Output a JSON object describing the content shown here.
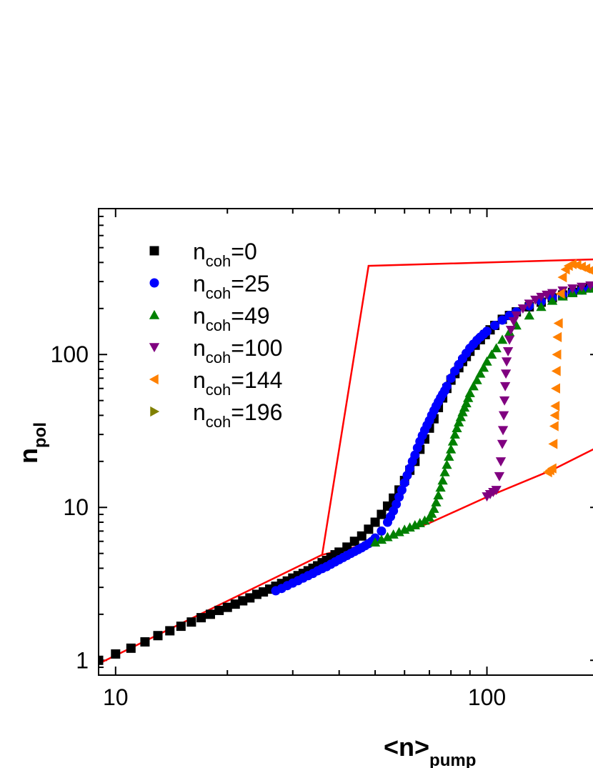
{
  "chart_data": {
    "type": "scatter",
    "title": "",
    "xlabel": {
      "main": "<n>",
      "sub": "pump"
    },
    "ylabel": {
      "main": "n",
      "sub": "pol"
    },
    "xscale": "log",
    "yscale": "log",
    "xlim": [
      9,
      200
    ],
    "ylim": [
      0.8,
      900
    ],
    "x_tick_labels": [
      "10",
      "100"
    ],
    "y_tick_labels": [
      "1",
      "10",
      "100"
    ],
    "grid": false,
    "legend_position": "top-left",
    "series": [
      {
        "name": {
          "main": "n",
          "sub": "coh",
          "rest": "=0"
        },
        "marker": "square",
        "color": "#000000",
        "x": [
          9,
          10,
          11,
          12,
          13,
          14,
          15,
          16,
          17,
          18,
          19,
          20,
          21,
          22,
          23,
          24,
          25,
          26,
          27,
          28,
          29,
          30,
          31,
          32,
          33,
          34,
          35,
          36,
          37,
          38,
          39,
          40,
          42,
          44,
          46,
          48,
          50,
          52,
          54,
          56,
          58,
          60,
          62,
          64,
          66,
          68,
          70,
          72,
          74,
          76,
          78,
          80,
          82,
          84,
          86,
          88,
          90,
          93,
          96,
          99,
          102,
          105,
          110,
          115,
          120,
          130,
          140,
          150,
          160,
          170,
          180,
          190,
          200
        ],
        "y": [
          1.0,
          1.1,
          1.2,
          1.32,
          1.45,
          1.56,
          1.67,
          1.78,
          1.9,
          2.0,
          2.12,
          2.22,
          2.33,
          2.45,
          2.56,
          2.7,
          2.8,
          2.92,
          3.05,
          3.18,
          3.3,
          3.45,
          3.58,
          3.7,
          3.85,
          4.0,
          4.15,
          4.35,
          4.5,
          4.7,
          4.9,
          5.1,
          5.5,
          6.0,
          6.5,
          7.2,
          8.0,
          9.0,
          10.2,
          11.5,
          13.0,
          15.0,
          17.5,
          20.0,
          24.0,
          28.0,
          33.0,
          38.0,
          45.0,
          52.0,
          60.0,
          68.0,
          75.0,
          82.0,
          90.0,
          97.0,
          105.0,
          115.0,
          125.0,
          135.0,
          145.0,
          155.0,
          170.0,
          180.0,
          190.0,
          205.0,
          220.0,
          235.0,
          245.0,
          255.0,
          265.0,
          275.0,
          285.0
        ]
      },
      {
        "name": {
          "main": "n",
          "sub": "coh",
          "rest": "=25"
        },
        "marker": "circle",
        "color": "#0000ff",
        "x": [
          27,
          28,
          29,
          30,
          31,
          32,
          33,
          34,
          35,
          36,
          37,
          38,
          39,
          40,
          41,
          42,
          43,
          44,
          45,
          46,
          47,
          48,
          49,
          50,
          52,
          54,
          55,
          56,
          57,
          58,
          59,
          60,
          61,
          62,
          63,
          64,
          65,
          66,
          67,
          68,
          69,
          70,
          71,
          72,
          73,
          74,
          75,
          76,
          77,
          78,
          80,
          82,
          84,
          86,
          88,
          90,
          92,
          94,
          96,
          98,
          100,
          105,
          110,
          115,
          120,
          130,
          140,
          150,
          160,
          170,
          180,
          190,
          200
        ],
        "y": [
          2.85,
          2.95,
          3.08,
          3.2,
          3.32,
          3.45,
          3.58,
          3.7,
          3.85,
          3.98,
          4.1,
          4.25,
          4.4,
          4.55,
          4.7,
          4.85,
          5.0,
          5.15,
          5.3,
          5.45,
          5.62,
          5.8,
          6.0,
          6.3,
          7.0,
          8.0,
          8.7,
          9.5,
          10.5,
          11.7,
          13.0,
          14.5,
          16.2,
          18.0,
          20.0,
          22.0,
          24.5,
          27.0,
          29.5,
          32.0,
          34.5,
          37.0,
          40.0,
          43.0,
          46.0,
          49.0,
          52.0,
          55.0,
          58.0,
          62.0,
          70.0,
          78.0,
          86.0,
          94.0,
          102.0,
          110.0,
          117.0,
          124.0,
          130.0,
          136.0,
          142.0,
          155.0,
          168.0,
          180.0,
          190.0,
          208.0,
          222.0,
          235.0,
          245.0,
          255.0,
          264.0,
          272.0,
          280.0
        ]
      },
      {
        "name": {
          "main": "n",
          "sub": "coh",
          "rest": "=49"
        },
        "marker": "triangle-up",
        "color": "#008000",
        "x": [
          50,
          52,
          54,
          56,
          58,
          60,
          62,
          64,
          66,
          68,
          70,
          71,
          72,
          73,
          74,
          75,
          76,
          77,
          78,
          79,
          80,
          81,
          82,
          83,
          84,
          85,
          86,
          87,
          88,
          89,
          90,
          92,
          94,
          96,
          98,
          100,
          103,
          106,
          110,
          115,
          120,
          130,
          140,
          150,
          160,
          170,
          180,
          190,
          200
        ],
        "y": [
          5.9,
          6.15,
          6.4,
          6.65,
          6.9,
          7.15,
          7.4,
          7.65,
          7.9,
          8.2,
          8.6,
          9.1,
          9.8,
          10.8,
          12.0,
          13.5,
          15.0,
          17.0,
          19.0,
          21.5,
          24.0,
          27.0,
          30.0,
          33.0,
          36.0,
          39.0,
          42.0,
          45.0,
          48.0,
          52.0,
          56.0,
          62.0,
          68.0,
          75.0,
          82.0,
          90.0,
          100.0,
          110.0,
          125.0,
          140.0,
          155.0,
          180.0,
          205.0,
          225.0,
          240.0,
          252.0,
          262.0,
          270.0,
          278.0
        ]
      },
      {
        "name": {
          "main": "n",
          "sub": "coh",
          "rest": "=100"
        },
        "marker": "triangle-down",
        "color": "#800080",
        "x": [
          100,
          102,
          104,
          106,
          108,
          109,
          110,
          110.5,
          111,
          111.5,
          112,
          112.5,
          113,
          114,
          115,
          116,
          118,
          120,
          125,
          130,
          135,
          140,
          145,
          150,
          160,
          170,
          180,
          190,
          200
        ],
        "y": [
          11.8,
          12.2,
          12.6,
          13.0,
          16.0,
          20.0,
          26.0,
          32.0,
          40.0,
          50.0,
          62.0,
          75.0,
          90.0,
          105.0,
          125.0,
          145.0,
          165.0,
          180.0,
          200.0,
          215.0,
          228.0,
          238.0,
          246.0,
          252.0,
          262.0,
          270.0,
          277.0,
          283.0,
          289.0
        ]
      },
      {
        "name": {
          "main": "n",
          "sub": "coh",
          "rest": "=144"
        },
        "marker": "triangle-left",
        "color": "#ff8000",
        "x": [
          146,
          148,
          150,
          151,
          152,
          152.5,
          153,
          153.5,
          154,
          154.5,
          155,
          156,
          158,
          160,
          163,
          166,
          170,
          175,
          180,
          185,
          190,
          195,
          200
        ],
        "y": [
          17.0,
          17.5,
          18.0,
          26.0,
          34.0,
          40.0,
          46.0,
          60.0,
          78.0,
          100.0,
          130.0,
          160.0,
          250.0,
          320.0,
          360.0,
          380.0,
          390.0,
          385.0,
          375.0,
          365.0,
          355.0,
          345.0,
          340.0
        ]
      },
      {
        "name": {
          "main": "n",
          "sub": "coh",
          "rest": "=196"
        },
        "marker": "triangle-right",
        "color": "#808000",
        "x": [],
        "y": []
      },
      {
        "name": "",
        "marker": "line",
        "color": "#ff0000",
        "x": [
          9,
          36,
          48,
          200
        ],
        "y": [
          0.95,
          4.9,
          380,
          420
        ]
      },
      {
        "name": "",
        "marker": "line",
        "color": "#ff0000",
        "x": [
          36,
          50,
          70,
          100,
          150,
          200
        ],
        "y": [
          4.9,
          5.9,
          7.9,
          11.7,
          17.6,
          25.0
        ]
      }
    ]
  }
}
